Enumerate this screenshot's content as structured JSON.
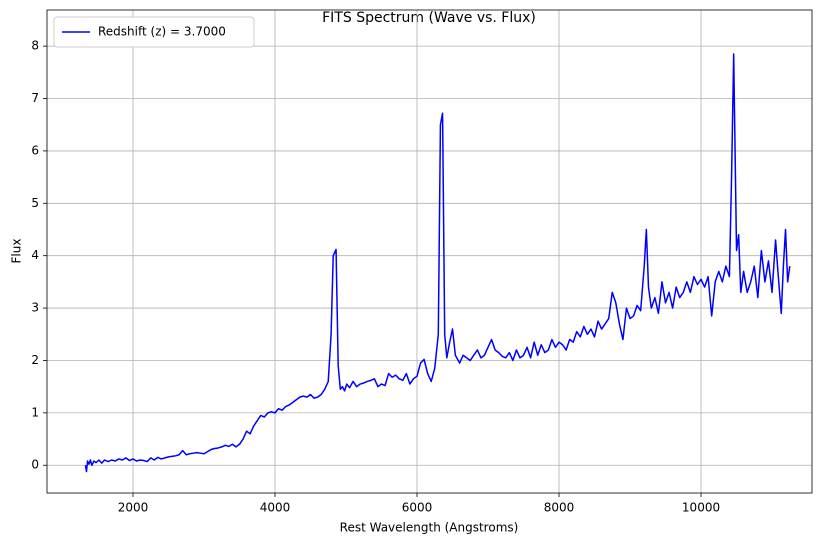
{
  "chart_data": {
    "type": "line",
    "title": "FITS Spectrum (Wave vs. Flux)",
    "x_label": "Rest Wavelength (Angstroms)",
    "y_label": "Flux",
    "x": [
      1330,
      1345,
      1360,
      1380,
      1400,
      1420,
      1450,
      1480,
      1520,
      1560,
      1600,
      1650,
      1700,
      1750,
      1800,
      1850,
      1900,
      1950,
      2000,
      2050,
      2100,
      2150,
      2200,
      2250,
      2300,
      2350,
      2400,
      2450,
      2500,
      2550,
      2600,
      2650,
      2700,
      2750,
      2800,
      2850,
      2900,
      2950,
      3000,
      3050,
      3100,
      3150,
      3200,
      3250,
      3300,
      3350,
      3400,
      3450,
      3500,
      3550,
      3600,
      3650,
      3700,
      3750,
      3800,
      3850,
      3900,
      3950,
      4000,
      4050,
      4100,
      4150,
      4200,
      4250,
      4300,
      4350,
      4400,
      4450,
      4500,
      4550,
      4600,
      4650,
      4700,
      4750,
      4790,
      4820,
      4860,
      4890,
      4920,
      4950,
      4980,
      5010,
      5050,
      5100,
      5150,
      5200,
      5250,
      5300,
      5350,
      5400,
      5450,
      5500,
      5550,
      5600,
      5650,
      5700,
      5750,
      5800,
      5850,
      5900,
      5950,
      6000,
      6050,
      6100,
      6150,
      6200,
      6250,
      6300,
      6330,
      6360,
      6390,
      6420,
      6460,
      6500,
      6540,
      6600,
      6650,
      6700,
      6750,
      6800,
      6850,
      6900,
      6950,
      7000,
      7050,
      7100,
      7150,
      7200,
      7250,
      7300,
      7350,
      7400,
      7450,
      7500,
      7550,
      7600,
      7650,
      7700,
      7750,
      7800,
      7850,
      7900,
      7950,
      8000,
      8050,
      8100,
      8150,
      8200,
      8250,
      8300,
      8350,
      8400,
      8450,
      8500,
      8550,
      8600,
      8650,
      8700,
      8750,
      8800,
      8850,
      8900,
      8950,
      9000,
      9050,
      9100,
      9150,
      9200,
      9230,
      9260,
      9300,
      9350,
      9400,
      9450,
      9500,
      9550,
      9600,
      9650,
      9700,
      9750,
      9800,
      9850,
      9900,
      9950,
      10000,
      10050,
      10100,
      10150,
      10200,
      10250,
      10300,
      10350,
      10400,
      10430,
      10460,
      10500,
      10530,
      10560,
      10600,
      10650,
      10700,
      10750,
      10800,
      10850,
      10900,
      10950,
      11000,
      11050,
      11100,
      11130,
      11160,
      11190,
      11220,
      11250
    ],
    "series": [
      {
        "name": "Redshift (z) = 3.7000",
        "color": "#0000ff",
        "values": [
          0.0,
          -0.12,
          0.08,
          0.02,
          0.1,
          0.0,
          0.08,
          0.05,
          0.1,
          0.04,
          0.1,
          0.07,
          0.1,
          0.08,
          0.12,
          0.1,
          0.14,
          0.09,
          0.12,
          0.08,
          0.1,
          0.09,
          0.07,
          0.14,
          0.1,
          0.15,
          0.12,
          0.14,
          0.16,
          0.17,
          0.18,
          0.2,
          0.28,
          0.2,
          0.22,
          0.23,
          0.24,
          0.23,
          0.22,
          0.26,
          0.3,
          0.32,
          0.33,
          0.35,
          0.38,
          0.36,
          0.4,
          0.35,
          0.4,
          0.5,
          0.65,
          0.6,
          0.75,
          0.85,
          0.95,
          0.92,
          1.0,
          1.02,
          1.0,
          1.08,
          1.05,
          1.12,
          1.15,
          1.2,
          1.25,
          1.3,
          1.32,
          1.3,
          1.35,
          1.28,
          1.3,
          1.35,
          1.45,
          1.6,
          2.5,
          4.0,
          4.12,
          1.9,
          1.45,
          1.5,
          1.42,
          1.55,
          1.48,
          1.6,
          1.5,
          1.55,
          1.57,
          1.6,
          1.62,
          1.65,
          1.5,
          1.55,
          1.52,
          1.75,
          1.68,
          1.72,
          1.65,
          1.62,
          1.75,
          1.55,
          1.65,
          1.7,
          1.95,
          2.02,
          1.75,
          1.6,
          1.85,
          2.5,
          6.5,
          6.72,
          2.5,
          2.05,
          2.35,
          2.6,
          2.1,
          1.95,
          2.1,
          2.05,
          2.0,
          2.1,
          2.2,
          2.05,
          2.1,
          2.25,
          2.4,
          2.2,
          2.15,
          2.08,
          2.05,
          2.15,
          2.0,
          2.2,
          2.05,
          2.1,
          2.25,
          2.05,
          2.35,
          2.1,
          2.3,
          2.15,
          2.2,
          2.4,
          2.25,
          2.35,
          2.3,
          2.2,
          2.4,
          2.35,
          2.55,
          2.45,
          2.65,
          2.5,
          2.6,
          2.45,
          2.75,
          2.6,
          2.7,
          2.8,
          3.3,
          3.1,
          2.7,
          2.4,
          3.0,
          2.8,
          2.85,
          3.05,
          2.95,
          3.8,
          4.5,
          3.4,
          3.0,
          3.2,
          2.9,
          3.5,
          3.1,
          3.3,
          3.0,
          3.4,
          3.2,
          3.3,
          3.5,
          3.3,
          3.6,
          3.45,
          3.55,
          3.4,
          3.6,
          2.85,
          3.5,
          3.7,
          3.5,
          3.8,
          3.6,
          5.5,
          7.85,
          4.1,
          4.4,
          3.3,
          3.7,
          3.3,
          3.5,
          3.8,
          3.2,
          4.1,
          3.5,
          3.9,
          3.3,
          4.3,
          3.4,
          2.9,
          3.8,
          4.5,
          3.5,
          3.8
        ]
      }
    ],
    "xlim": [
      789,
      11563
    ],
    "ylim": [
      -0.53,
      8.69
    ],
    "xticks": [
      2000,
      4000,
      6000,
      8000,
      10000
    ],
    "yticks": [
      0,
      1,
      2,
      3,
      4,
      5,
      6,
      7,
      8
    ],
    "grid": true,
    "legend": "upper-left"
  }
}
